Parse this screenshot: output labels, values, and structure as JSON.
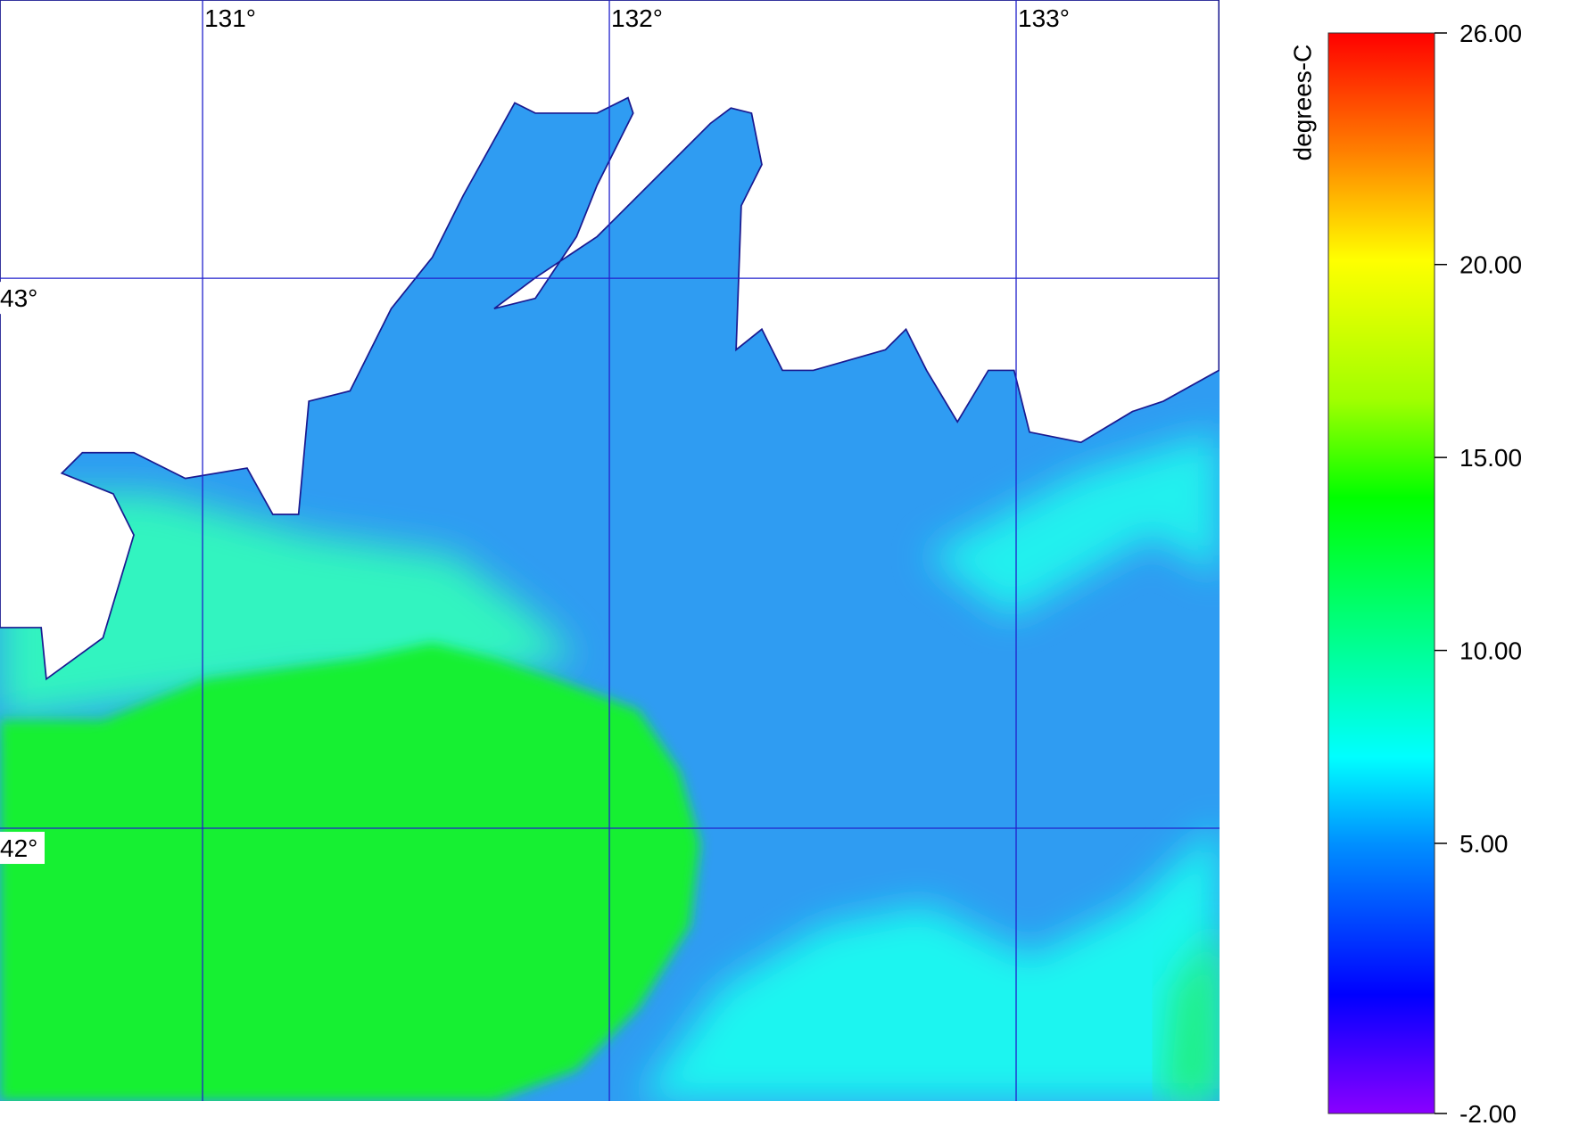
{
  "map": {
    "lon_range": [
      130.502,
      133.5
    ],
    "lat_range": [
      43.506,
      41.504
    ],
    "lon_ticks": [
      {
        "value": 131,
        "label": "131°"
      },
      {
        "value": 132,
        "label": "132°"
      },
      {
        "value": 133,
        "label": "133°"
      }
    ],
    "lat_ticks": [
      {
        "value": 43,
        "label": "43°"
      },
      {
        "value": 42,
        "label": "42°"
      }
    ],
    "colorbar": {
      "label": "degrees-C",
      "range": [
        -2,
        26
      ],
      "ticks": [
        {
          "value": 26,
          "label": "26.00"
        },
        {
          "value": 20,
          "label": "20.00"
        },
        {
          "value": 15,
          "label": "15.00"
        },
        {
          "value": 10,
          "label": "10.00"
        },
        {
          "value": 5,
          "label": "5.00"
        },
        {
          "value": -2,
          "label": "-2.00"
        }
      ]
    }
  }
}
